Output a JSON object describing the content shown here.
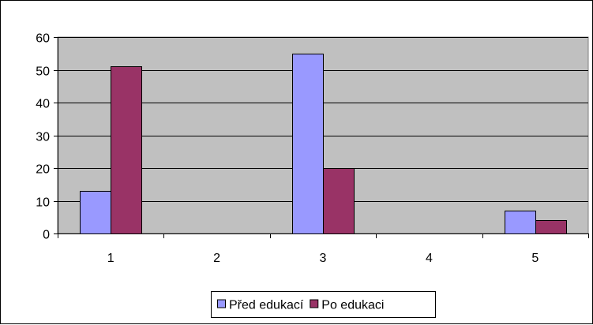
{
  "chart_data": {
    "type": "bar",
    "categories": [
      "1",
      "2",
      "3",
      "4",
      "5"
    ],
    "series": [
      {
        "name": "Před edukací",
        "values": [
          13,
          0,
          55,
          0,
          7
        ],
        "color": "#9999ff"
      },
      {
        "name": "Po edukaci",
        "values": [
          51,
          0,
          20,
          0,
          4
        ],
        "color": "#993366"
      }
    ],
    "ylim": [
      0,
      60
    ],
    "yticks": [
      0,
      10,
      20,
      30,
      40,
      50,
      60
    ],
    "grid": true,
    "plot_background": "#c0c0c0",
    "legend_position": "bottom",
    "title": "",
    "xlabel": "",
    "ylabel": ""
  }
}
